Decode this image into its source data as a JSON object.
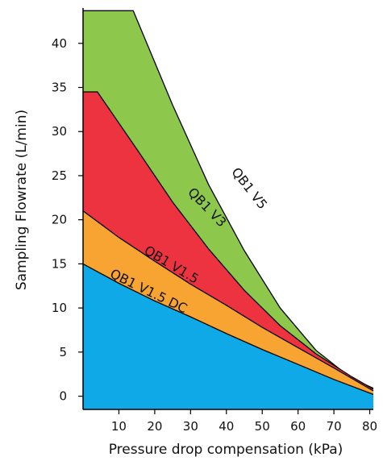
{
  "chart_data": {
    "type": "area",
    "title": "",
    "xlabel": "Pressure drop compensation (kPa)",
    "ylabel": "Sampling Flowrate  (L/min)",
    "xlim": [
      0,
      81
    ],
    "ylim": [
      -1.5,
      44
    ],
    "x_ticks": [
      10,
      20,
      30,
      40,
      50,
      60,
      70,
      80
    ],
    "y_ticks": [
      0,
      5,
      10,
      15,
      20,
      25,
      30,
      35,
      40
    ],
    "grid": false,
    "legend": "none",
    "series": [
      {
        "name": "QB1 V5",
        "color": "#8DC84C",
        "points": [
          [
            0,
            43.7
          ],
          [
            14,
            43.7
          ],
          [
            25,
            33
          ],
          [
            35,
            24
          ],
          [
            45,
            16.5
          ],
          [
            55,
            10
          ],
          [
            65,
            5.2
          ],
          [
            75,
            2
          ],
          [
            81,
            0.9
          ]
        ]
      },
      {
        "name": "QB1 V3",
        "color": "#EE3340",
        "points": [
          [
            0,
            34.5
          ],
          [
            4,
            34.5
          ],
          [
            15,
            28
          ],
          [
            25,
            22
          ],
          [
            35,
            16.7
          ],
          [
            45,
            12
          ],
          [
            55,
            8
          ],
          [
            65,
            4.8
          ],
          [
            75,
            2.2
          ],
          [
            81,
            0.8
          ]
        ]
      },
      {
        "name": "QB1 V1.5",
        "color": "#F7A432",
        "points": [
          [
            0,
            21
          ],
          [
            10,
            18
          ],
          [
            20,
            15.3
          ],
          [
            30,
            12.7
          ],
          [
            40,
            10.3
          ],
          [
            50,
            7.8
          ],
          [
            60,
            5.5
          ],
          [
            70,
            3.2
          ],
          [
            81,
            0.6
          ]
        ]
      },
      {
        "name": "QB1 V1.5 DC",
        "color": "#10A9E8",
        "points": [
          [
            0,
            15
          ],
          [
            10,
            12.8
          ],
          [
            20,
            10.8
          ],
          [
            30,
            9
          ],
          [
            40,
            7.1
          ],
          [
            50,
            5.3
          ],
          [
            60,
            3.6
          ],
          [
            70,
            1.9
          ],
          [
            81,
            0.2
          ]
        ]
      }
    ]
  }
}
